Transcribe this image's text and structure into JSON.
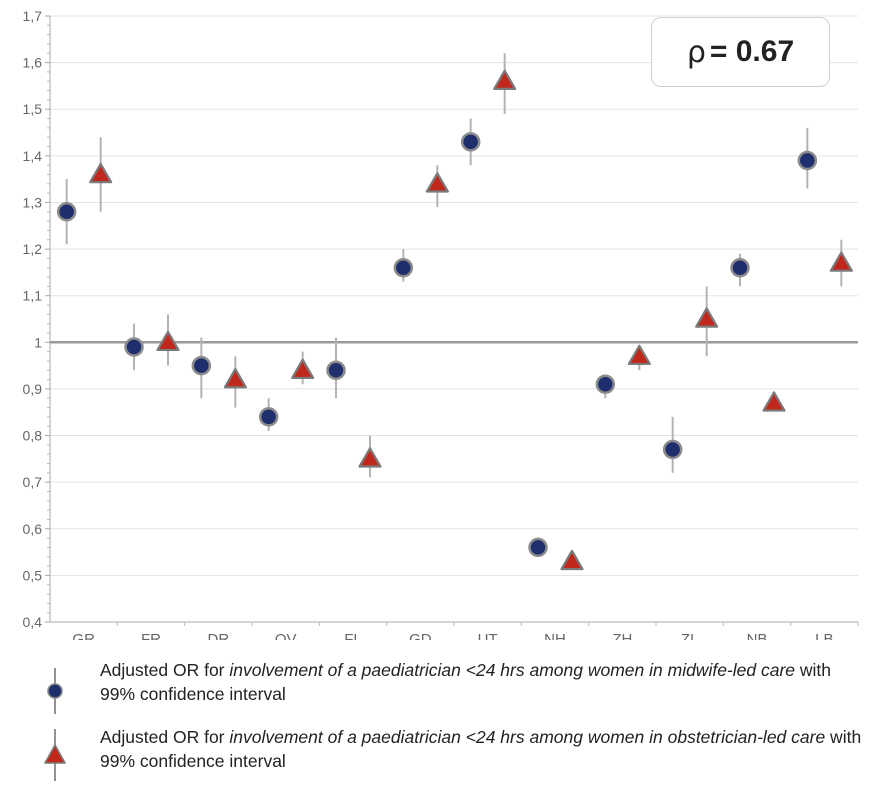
{
  "chart_data": {
    "type": "scatter",
    "categories": [
      "GR",
      "FR",
      "DR",
      "OV",
      "FL",
      "GD",
      "UT",
      "NH",
      "ZH",
      "ZL",
      "NB",
      "LB"
    ],
    "ylim": [
      0.4,
      1.7
    ],
    "yticks": [
      "0,4",
      "0,5",
      "0,6",
      "0,7",
      "0,8",
      "0,9",
      "1",
      "1,1",
      "1,2",
      "1,3",
      "1,4",
      "1,5",
      "1,6",
      "1,7"
    ],
    "reference_line": 1.0,
    "grid": "horizontal",
    "annotation": {
      "symbol": "ρ",
      "value": "= 0.67"
    },
    "series": [
      {
        "marker": "circle",
        "color": "#1f2f6e",
        "values": [
          1.28,
          0.99,
          0.95,
          0.84,
          0.94,
          1.16,
          1.43,
          0.56,
          0.91,
          0.77,
          1.16,
          1.39
        ],
        "ci_low": [
          1.21,
          0.94,
          0.88,
          0.81,
          0.88,
          1.13,
          1.38,
          0.56,
          0.88,
          0.72,
          1.12,
          1.33
        ],
        "ci_high": [
          1.35,
          1.04,
          1.01,
          0.88,
          1.01,
          1.2,
          1.48,
          0.56,
          0.93,
          0.84,
          1.19,
          1.46
        ]
      },
      {
        "marker": "triangle",
        "color": "#c0281c",
        "values": [
          1.36,
          1.0,
          0.92,
          0.94,
          0.75,
          1.34,
          1.56,
          0.53,
          0.97,
          1.05,
          0.87,
          1.17
        ],
        "ci_low": [
          1.28,
          0.95,
          0.86,
          0.91,
          0.71,
          1.29,
          1.49,
          0.53,
          0.94,
          0.97,
          0.86,
          1.12
        ],
        "ci_high": [
          1.44,
          1.06,
          0.97,
          0.98,
          0.8,
          1.38,
          1.62,
          0.53,
          0.99,
          1.12,
          0.89,
          1.22
        ]
      }
    ]
  },
  "legend": [
    {
      "pre": "Adjusted OR for ",
      "italic": "involvement of a paediatrician <24 hrs among women in midwife-led care",
      "post": " with 99% confidence interval"
    },
    {
      "pre": "Adjusted OR for ",
      "italic": "involvement of a paediatrician <24 hrs among women in obstetrician-led care",
      "post": " with 99% confidence interval"
    }
  ]
}
